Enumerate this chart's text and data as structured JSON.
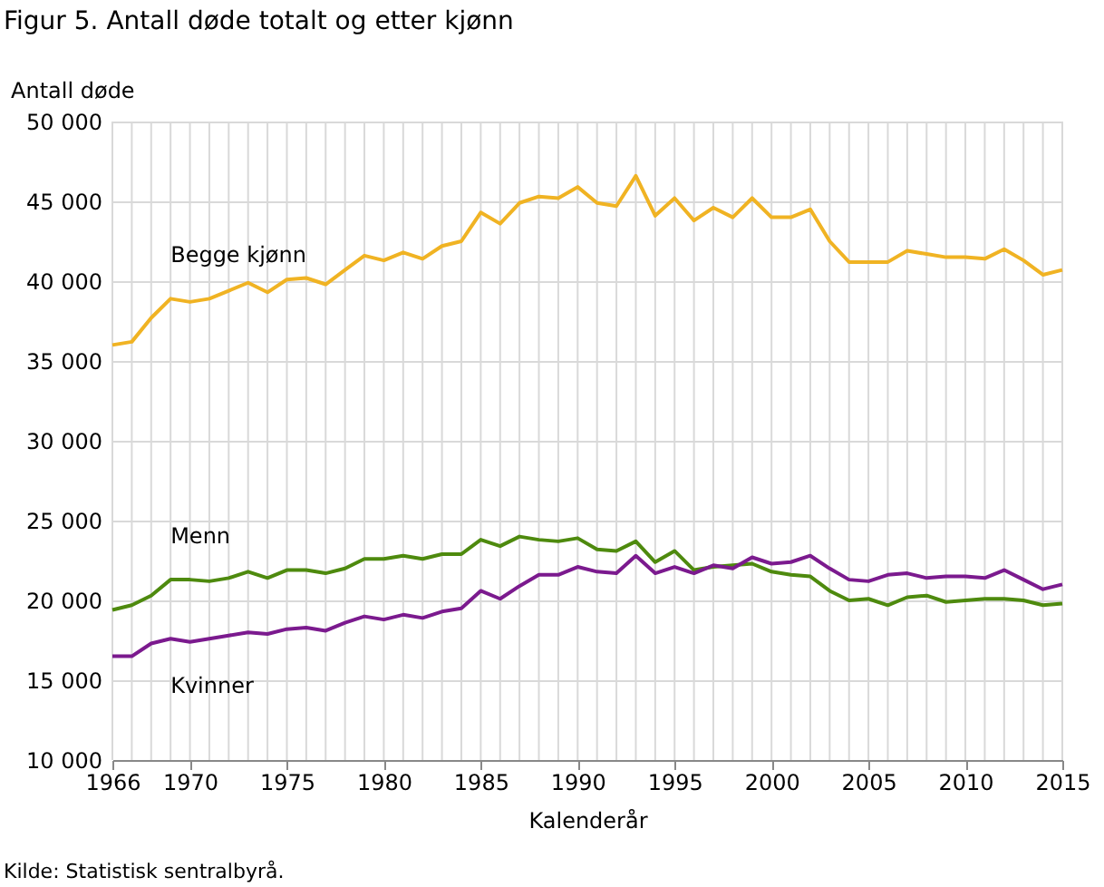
{
  "chart_data": {
    "type": "line",
    "title": "Figur 5. Antall døde totalt og etter kjønn",
    "ylabel": "Antall døde",
    "xlabel": "Kalenderår",
    "annotations": [
      "Kilde: Statistisk sentralbyrå."
    ],
    "x": [
      1966,
      1967,
      1968,
      1969,
      1970,
      1971,
      1972,
      1973,
      1974,
      1975,
      1976,
      1977,
      1978,
      1979,
      1980,
      1981,
      1982,
      1983,
      1984,
      1985,
      1986,
      1987,
      1988,
      1989,
      1990,
      1991,
      1992,
      1993,
      1994,
      1995,
      1996,
      1997,
      1998,
      1999,
      2000,
      2001,
      2002,
      2003,
      2004,
      2005,
      2006,
      2007,
      2008,
      2009,
      2010,
      2011,
      2012,
      2013,
      2014,
      2015
    ],
    "series": [
      {
        "name": "Begge  kjønn",
        "color": "#f0b323",
        "values": [
          36000,
          36200,
          37700,
          38900,
          38700,
          38900,
          39400,
          39900,
          39300,
          40100,
          40200,
          39800,
          40700,
          41600,
          41300,
          41800,
          41400,
          42200,
          42500,
          44300,
          43600,
          44900,
          45300,
          45200,
          45900,
          44900,
          44700,
          46600,
          44100,
          45200,
          43800,
          44600,
          44000,
          45200,
          44000,
          44000,
          44500,
          42500,
          41200,
          41200,
          41200,
          41900,
          41700,
          41500,
          41500,
          41400,
          42000,
          41300,
          40400,
          40700
        ]
      },
      {
        "name": "Menn",
        "color": "#4e8a0e",
        "values": [
          19400,
          19700,
          20300,
          21300,
          21300,
          21200,
          21400,
          21800,
          21400,
          21900,
          21900,
          21700,
          22000,
          22600,
          22600,
          22800,
          22600,
          22900,
          22900,
          23800,
          23400,
          24000,
          23800,
          23700,
          23900,
          23200,
          23100,
          23700,
          22400,
          23100,
          21900,
          22100,
          22200,
          22300,
          21800,
          21600,
          21500,
          20600,
          20000,
          20100,
          19700,
          20200,
          20300,
          19900,
          20000,
          20100,
          20100,
          20000,
          19700,
          19800
        ]
      },
      {
        "name": "Kvinner",
        "color": "#7b1a8e",
        "values": [
          16500,
          16500,
          17300,
          17600,
          17400,
          17600,
          17800,
          18000,
          17900,
          18200,
          18300,
          18100,
          18600,
          19000,
          18800,
          19100,
          18900,
          19300,
          19500,
          20600,
          20100,
          20900,
          21600,
          21600,
          22100,
          21800,
          21700,
          22800,
          21700,
          22100,
          21700,
          22200,
          22000,
          22700,
          22300,
          22400,
          22800,
          22000,
          21300,
          21200,
          21600,
          21700,
          21400,
          21500,
          21500,
          21400,
          21900,
          21300,
          20700,
          21000
        ]
      }
    ],
    "xlim": [
      1966,
      2015
    ],
    "xticks": [
      1966,
      1970,
      1975,
      1980,
      1985,
      1990,
      1995,
      2000,
      2005,
      2010,
      2015
    ],
    "ylim": [
      10000,
      50000
    ],
    "yticks": [
      {
        "value": 10000,
        "label": "10 000"
      },
      {
        "value": 15000,
        "label": "15 000"
      },
      {
        "value": 20000,
        "label": "20 000"
      },
      {
        "value": 25000,
        "label": "25 000"
      },
      {
        "value": 30000,
        "label": "30 000"
      },
      {
        "value": 35000,
        "label": "35 000"
      },
      {
        "value": 40000,
        "label": "40 000"
      },
      {
        "value": 45000,
        "label": "45 000"
      },
      {
        "value": 50000,
        "label": "50 000"
      }
    ],
    "grid": true,
    "legend": false,
    "marker": "none",
    "line_style": "solid"
  }
}
